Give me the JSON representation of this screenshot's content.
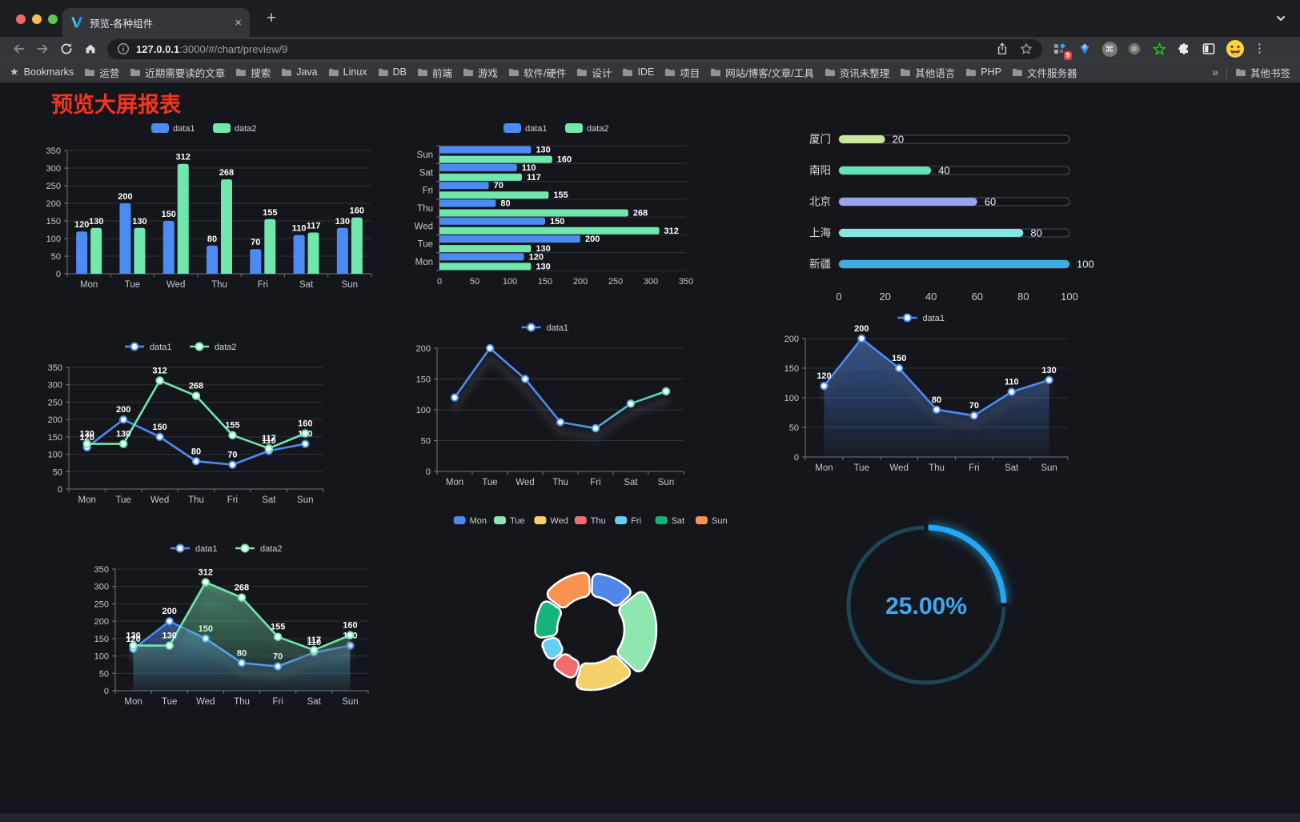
{
  "browser": {
    "tab_title": "预览-各种组件",
    "url": {
      "host": "127.0.0.1",
      "rest": ":3000/#/chart/preview/9"
    },
    "bookmarks_bar": {
      "label": "Bookmarks",
      "items": [
        "运营",
        "近期需要读的文章",
        "搜索",
        "Java",
        "Linux",
        "DB",
        "前端",
        "游戏",
        "软件/硬件",
        "设计",
        "IDE",
        "项目",
        "网站/博客/文章/工具",
        "资讯未整理",
        "其他语言",
        "PHP",
        "文件服务器"
      ],
      "overflow": "»",
      "other_bookmarks": "其他书签"
    },
    "extension_badge": "9"
  },
  "glyphs": {
    "close": "×",
    "new_tab": "+",
    "menu_dots": "⋮",
    "bookmarks_star": "★",
    "command": "⌘"
  },
  "page": {
    "title": "预览大屏报表",
    "title_color": "#f6341f"
  },
  "colors": {
    "data1": "#4C8BF4",
    "data2": "#6FE7AD"
  },
  "chart_data": [
    {
      "id": "bar-grouped",
      "type": "bar",
      "categories": [
        "Mon",
        "Tue",
        "Wed",
        "Thu",
        "Fri",
        "Sat",
        "Sun"
      ],
      "series": [
        {
          "name": "data1",
          "color": "#4C8BF4",
          "values": [
            120,
            200,
            150,
            80,
            70,
            110,
            130
          ]
        },
        {
          "name": "data2",
          "color": "#6FE7AD",
          "values": [
            130,
            130,
            312,
            268,
            155,
            117,
            160
          ]
        }
      ],
      "ylim": [
        0,
        350
      ],
      "yticks": [
        0,
        50,
        100,
        150,
        200,
        250,
        300,
        350
      ],
      "legend": [
        "data1",
        "data2"
      ],
      "value_labels": true
    },
    {
      "id": "bar-horizontal",
      "type": "hbar",
      "categories": [
        "Mon",
        "Tue",
        "Wed",
        "Thu",
        "Fri",
        "Sat",
        "Sun"
      ],
      "series": [
        {
          "name": "data1",
          "color": "#4C8BF4",
          "values": [
            120,
            200,
            150,
            80,
            70,
            110,
            130
          ]
        },
        {
          "name": "data2",
          "color": "#6FE7AD",
          "values": [
            130,
            130,
            312,
            268,
            155,
            117,
            160
          ]
        }
      ],
      "xlim": [
        0,
        350
      ],
      "xticks": [
        0,
        50,
        100,
        150,
        200,
        250,
        300,
        350
      ],
      "legend": [
        "data1",
        "data2"
      ],
      "value_labels": true
    },
    {
      "id": "progress-bars",
      "type": "progress",
      "max": 100,
      "xticks": [
        0,
        20,
        40,
        60,
        80,
        100
      ],
      "items": [
        {
          "label": "厦门",
          "value": 20,
          "color": "#C9E798"
        },
        {
          "label": "南阳",
          "value": 40,
          "color": "#63E2B7"
        },
        {
          "label": "北京",
          "value": 60,
          "color": "#99A3EC"
        },
        {
          "label": "上海",
          "value": 80,
          "color": "#83E6E1"
        },
        {
          "label": "新疆",
          "value": 100,
          "color": "#3BAFE3"
        }
      ]
    },
    {
      "id": "line-dual",
      "type": "line",
      "categories": [
        "Mon",
        "Tue",
        "Wed",
        "Thu",
        "Fri",
        "Sat",
        "Sun"
      ],
      "series": [
        {
          "name": "data1",
          "color": "#4C8BF4",
          "values": [
            120,
            200,
            150,
            80,
            70,
            110,
            130
          ]
        },
        {
          "name": "data2",
          "color": "#6FE7AD",
          "values": [
            130,
            130,
            312,
            268,
            155,
            117,
            160
          ]
        }
      ],
      "ylim": [
        0,
        350
      ],
      "yticks": [
        0,
        50,
        100,
        150,
        200,
        250,
        300,
        350
      ],
      "legend": [
        "data1",
        "data2"
      ],
      "value_labels": true
    },
    {
      "id": "line-gradient",
      "type": "line",
      "categories": [
        "Mon",
        "Tue",
        "Wed",
        "Thu",
        "Fri",
        "Sat",
        "Sun"
      ],
      "series": [
        {
          "name": "data1",
          "color": "#4C8BF4",
          "values": [
            120,
            200,
            150,
            80,
            70,
            110,
            130
          ]
        }
      ],
      "ylim": [
        0,
        200
      ],
      "yticks": [
        0,
        50,
        100,
        150,
        200
      ],
      "legend": [
        "data1"
      ],
      "value_labels": false,
      "gradient": [
        "#4C8BF4",
        "#6FE7AD"
      ],
      "shadow": true
    },
    {
      "id": "area-single",
      "type": "line",
      "categories": [
        "Mon",
        "Tue",
        "Wed",
        "Thu",
        "Fri",
        "Sat",
        "Sun"
      ],
      "series": [
        {
          "name": "data1",
          "color": "#4C8BF4",
          "values": [
            120,
            200,
            150,
            80,
            70,
            110,
            130
          ],
          "area": true
        }
      ],
      "ylim": [
        0,
        200
      ],
      "yticks": [
        0,
        50,
        100,
        150,
        200
      ],
      "legend": [
        "data1"
      ],
      "value_labels": true,
      "shadow": true
    },
    {
      "id": "area-dual",
      "type": "line",
      "categories": [
        "Mon",
        "Tue",
        "Wed",
        "Thu",
        "Fri",
        "Sat",
        "Sun"
      ],
      "series": [
        {
          "name": "data1",
          "color": "#4C8BF4",
          "values": [
            120,
            200,
            150,
            80,
            70,
            110,
            130
          ],
          "area": true
        },
        {
          "name": "data2",
          "color": "#6FE7AD",
          "values": [
            130,
            130,
            312,
            268,
            155,
            117,
            160
          ],
          "area": true
        }
      ],
      "ylim": [
        0,
        350
      ],
      "yticks": [
        0,
        50,
        100,
        150,
        200,
        250,
        300,
        350
      ],
      "legend": [
        "data1",
        "data2"
      ],
      "value_labels": true,
      "shadow": true
    },
    {
      "id": "pie-rose",
      "type": "pie",
      "items": [
        {
          "name": "Mon",
          "value": 120,
          "color": "#4E87E9"
        },
        {
          "name": "Tue",
          "value": 200,
          "color": "#8FE7B0"
        },
        {
          "name": "Wed",
          "value": 150,
          "color": "#F5D069"
        },
        {
          "name": "Thu",
          "value": 80,
          "color": "#F16D6D"
        },
        {
          "name": "Fri",
          "value": 70,
          "color": "#66CEF2"
        },
        {
          "name": "Sat",
          "value": 110,
          "color": "#16B37B"
        },
        {
          "name": "Sun",
          "value": 130,
          "color": "#F7934F"
        }
      ]
    },
    {
      "id": "gauge-progress",
      "type": "gauge",
      "value": 25,
      "label": "25.00%",
      "color": "#23A7F5",
      "track_color": "#1C4753",
      "text_color": "#3FA9F2"
    }
  ]
}
